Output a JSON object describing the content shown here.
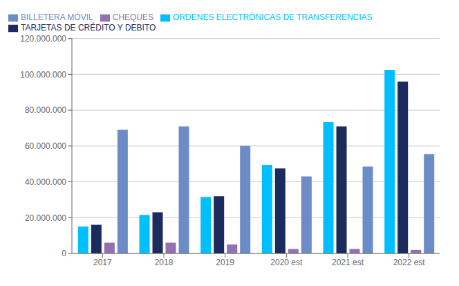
{
  "chart_data": {
    "type": "bar",
    "categories": [
      "2017",
      "2018",
      "2019",
      "2020 est",
      "2021 est",
      "2022 est"
    ],
    "series": [
      {
        "name": "ORDENES ELECTRÓNICAS DE TRANSFERENCIAS",
        "color": "#00BFFF",
        "values": [
          15000000,
          21500000,
          31500000,
          49500000,
          73500000,
          102500000
        ]
      },
      {
        "name": "TARJETAS DE CRÉDITO Y DEBITO",
        "color": "#1C2B5E",
        "values": [
          16000000,
          23000000,
          32000000,
          47500000,
          71000000,
          96000000
        ]
      },
      {
        "name": "CHEQUES",
        "color": "#9370B0",
        "values": [
          6000000,
          6000000,
          5000000,
          2500000,
          2500000,
          2000000
        ]
      },
      {
        "name": "BILLETERA MÓVIL",
        "color": "#6B8CC7",
        "values": [
          69000000,
          71000000,
          60000000,
          43000000,
          48500000,
          55500000
        ]
      }
    ],
    "ylim": [
      0,
      120000000
    ],
    "yticks": [
      0,
      {
        "value": 20000000,
        "label": "20.000.000"
      },
      {
        "value": 40000000,
        "label": "40.000.000"
      },
      {
        "value": 60000000,
        "label": "60.000.000"
      },
      {
        "value": 80000000,
        "label": "80.000.000"
      },
      {
        "value": 100000000,
        "label": "100.000.000"
      },
      {
        "value": 120000000,
        "label": "120.000.000"
      }
    ],
    "grid": true,
    "legend": "upper left"
  }
}
